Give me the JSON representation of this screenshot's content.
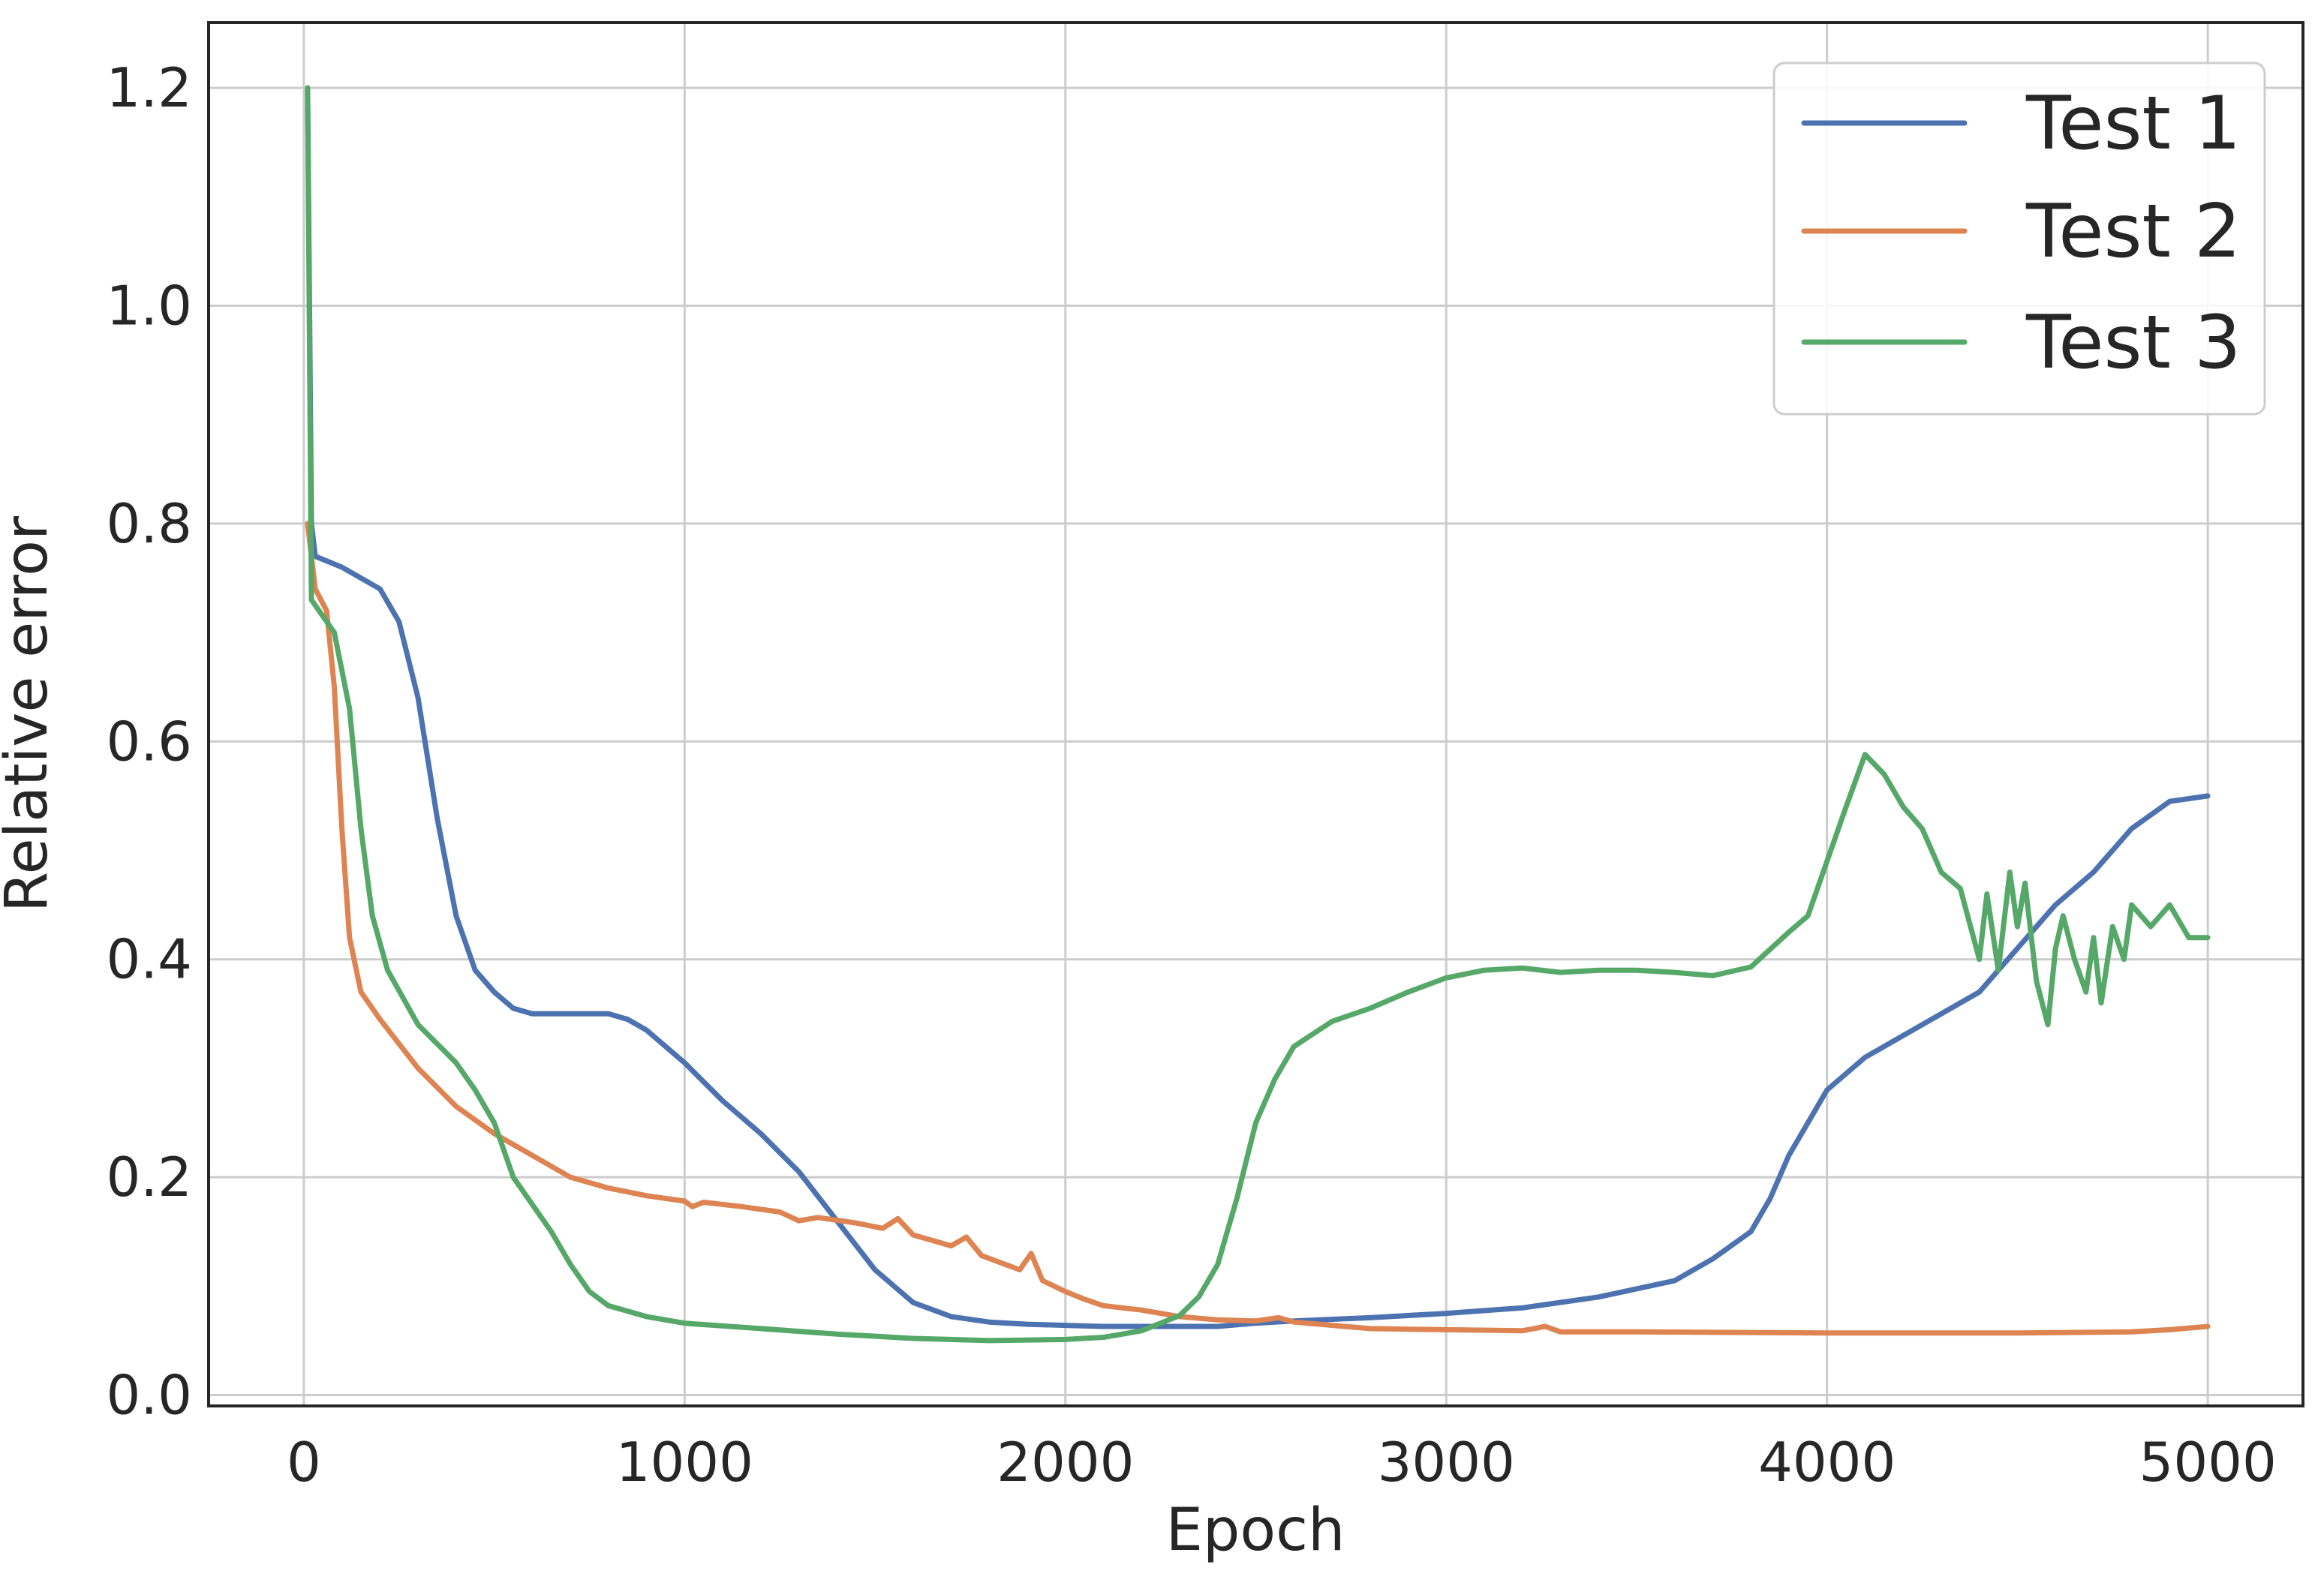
{
  "chart_data": {
    "type": "line",
    "title": "",
    "xlabel": "Epoch",
    "ylabel": "Relative error",
    "xlim": [
      -250,
      5250
    ],
    "ylim": [
      -0.01,
      1.26
    ],
    "xticks": [
      0,
      1000,
      2000,
      3000,
      4000,
      5000
    ],
    "xtick_labels": [
      "0",
      "1000",
      "2000",
      "3000",
      "4000",
      "5000"
    ],
    "yticks": [
      0.0,
      0.2,
      0.4,
      0.6,
      0.8,
      1.0,
      1.2
    ],
    "ytick_labels": [
      "0.0",
      "0.2",
      "0.4",
      "0.6",
      "0.8",
      "1.0",
      "1.2"
    ],
    "grid": true,
    "legend_position": "top-right",
    "series": [
      {
        "name": "Test 1",
        "color": "#4c72b0",
        "points": [
          [
            10,
            1.2
          ],
          [
            20,
            0.8
          ],
          [
            30,
            0.77
          ],
          [
            100,
            0.76
          ],
          [
            200,
            0.74
          ],
          [
            250,
            0.71
          ],
          [
            300,
            0.64
          ],
          [
            350,
            0.53
          ],
          [
            400,
            0.44
          ],
          [
            450,
            0.39
          ],
          [
            500,
            0.37
          ],
          [
            550,
            0.355
          ],
          [
            600,
            0.35
          ],
          [
            700,
            0.35
          ],
          [
            800,
            0.35
          ],
          [
            850,
            0.345
          ],
          [
            900,
            0.335
          ],
          [
            1000,
            0.305
          ],
          [
            1100,
            0.27
          ],
          [
            1200,
            0.24
          ],
          [
            1300,
            0.205
          ],
          [
            1400,
            0.16
          ],
          [
            1500,
            0.115
          ],
          [
            1600,
            0.085
          ],
          [
            1700,
            0.072
          ],
          [
            1800,
            0.067
          ],
          [
            1900,
            0.065
          ],
          [
            2000,
            0.064
          ],
          [
            2100,
            0.063
          ],
          [
            2200,
            0.063
          ],
          [
            2300,
            0.063
          ],
          [
            2400,
            0.063
          ],
          [
            2500,
            0.066
          ],
          [
            2600,
            0.068
          ],
          [
            2800,
            0.071
          ],
          [
            3000,
            0.075
          ],
          [
            3200,
            0.08
          ],
          [
            3400,
            0.09
          ],
          [
            3600,
            0.105
          ],
          [
            3700,
            0.125
          ],
          [
            3800,
            0.15
          ],
          [
            3850,
            0.18
          ],
          [
            3900,
            0.22
          ],
          [
            3950,
            0.25
          ],
          [
            4000,
            0.28
          ],
          [
            4100,
            0.31
          ],
          [
            4200,
            0.33
          ],
          [
            4300,
            0.35
          ],
          [
            4400,
            0.37
          ],
          [
            4500,
            0.41
          ],
          [
            4600,
            0.45
          ],
          [
            4700,
            0.48
          ],
          [
            4800,
            0.52
          ],
          [
            4900,
            0.545
          ],
          [
            5000,
            0.55
          ]
        ]
      },
      {
        "name": "Test 2",
        "color": "#dd8452",
        "points": [
          [
            10,
            0.8
          ],
          [
            30,
            0.74
          ],
          [
            60,
            0.72
          ],
          [
            80,
            0.65
          ],
          [
            100,
            0.52
          ],
          [
            120,
            0.42
          ],
          [
            150,
            0.37
          ],
          [
            200,
            0.345
          ],
          [
            300,
            0.3
          ],
          [
            400,
            0.265
          ],
          [
            500,
            0.24
          ],
          [
            600,
            0.22
          ],
          [
            700,
            0.2
          ],
          [
            800,
            0.19
          ],
          [
            900,
            0.183
          ],
          [
            1000,
            0.178
          ],
          [
            1020,
            0.173
          ],
          [
            1050,
            0.177
          ],
          [
            1150,
            0.173
          ],
          [
            1250,
            0.168
          ],
          [
            1300,
            0.16
          ],
          [
            1350,
            0.163
          ],
          [
            1450,
            0.158
          ],
          [
            1520,
            0.153
          ],
          [
            1560,
            0.162
          ],
          [
            1600,
            0.147
          ],
          [
            1700,
            0.137
          ],
          [
            1740,
            0.145
          ],
          [
            1780,
            0.128
          ],
          [
            1880,
            0.115
          ],
          [
            1910,
            0.13
          ],
          [
            1940,
            0.105
          ],
          [
            2000,
            0.095
          ],
          [
            2050,
            0.088
          ],
          [
            2100,
            0.082
          ],
          [
            2200,
            0.078
          ],
          [
            2300,
            0.072
          ],
          [
            2400,
            0.069
          ],
          [
            2500,
            0.068
          ],
          [
            2560,
            0.071
          ],
          [
            2600,
            0.067
          ],
          [
            2800,
            0.061
          ],
          [
            3000,
            0.06
          ],
          [
            3200,
            0.059
          ],
          [
            3260,
            0.063
          ],
          [
            3300,
            0.058
          ],
          [
            3500,
            0.058
          ],
          [
            4000,
            0.057
          ],
          [
            4500,
            0.057
          ],
          [
            4800,
            0.058
          ],
          [
            4900,
            0.06
          ],
          [
            5000,
            0.063
          ]
        ]
      },
      {
        "name": "Test 3",
        "color": "#55a868",
        "points": [
          [
            10,
            1.2
          ],
          [
            20,
            0.73
          ],
          [
            40,
            0.72
          ],
          [
            80,
            0.7
          ],
          [
            120,
            0.63
          ],
          [
            150,
            0.52
          ],
          [
            180,
            0.44
          ],
          [
            220,
            0.39
          ],
          [
            300,
            0.34
          ],
          [
            400,
            0.305
          ],
          [
            450,
            0.28
          ],
          [
            500,
            0.25
          ],
          [
            550,
            0.2
          ],
          [
            600,
            0.175
          ],
          [
            650,
            0.15
          ],
          [
            700,
            0.12
          ],
          [
            750,
            0.095
          ],
          [
            800,
            0.082
          ],
          [
            900,
            0.072
          ],
          [
            1000,
            0.066
          ],
          [
            1200,
            0.061
          ],
          [
            1400,
            0.056
          ],
          [
            1600,
            0.052
          ],
          [
            1800,
            0.05
          ],
          [
            2000,
            0.051
          ],
          [
            2100,
            0.053
          ],
          [
            2200,
            0.059
          ],
          [
            2300,
            0.073
          ],
          [
            2350,
            0.09
          ],
          [
            2400,
            0.12
          ],
          [
            2450,
            0.18
          ],
          [
            2500,
            0.25
          ],
          [
            2550,
            0.29
          ],
          [
            2600,
            0.32
          ],
          [
            2700,
            0.343
          ],
          [
            2800,
            0.355
          ],
          [
            2900,
            0.37
          ],
          [
            3000,
            0.383
          ],
          [
            3100,
            0.39
          ],
          [
            3200,
            0.392
          ],
          [
            3300,
            0.388
          ],
          [
            3400,
            0.39
          ],
          [
            3500,
            0.39
          ],
          [
            3600,
            0.388
          ],
          [
            3700,
            0.385
          ],
          [
            3800,
            0.393
          ],
          [
            3900,
            0.425
          ],
          [
            3950,
            0.44
          ],
          [
            4000,
            0.49
          ],
          [
            4050,
            0.54
          ],
          [
            4100,
            0.588
          ],
          [
            4150,
            0.57
          ],
          [
            4200,
            0.54
          ],
          [
            4250,
            0.52
          ],
          [
            4300,
            0.48
          ],
          [
            4350,
            0.465
          ],
          [
            4400,
            0.4
          ],
          [
            4420,
            0.46
          ],
          [
            4450,
            0.39
          ],
          [
            4480,
            0.48
          ],
          [
            4500,
            0.43
          ],
          [
            4520,
            0.47
          ],
          [
            4550,
            0.38
          ],
          [
            4580,
            0.34
          ],
          [
            4600,
            0.41
          ],
          [
            4620,
            0.44
          ],
          [
            4650,
            0.4
          ],
          [
            4680,
            0.37
          ],
          [
            4700,
            0.42
          ],
          [
            4720,
            0.36
          ],
          [
            4750,
            0.43
          ],
          [
            4780,
            0.4
          ],
          [
            4800,
            0.45
          ],
          [
            4850,
            0.43
          ],
          [
            4900,
            0.45
          ],
          [
            4950,
            0.42
          ],
          [
            5000,
            0.42
          ]
        ]
      }
    ]
  }
}
